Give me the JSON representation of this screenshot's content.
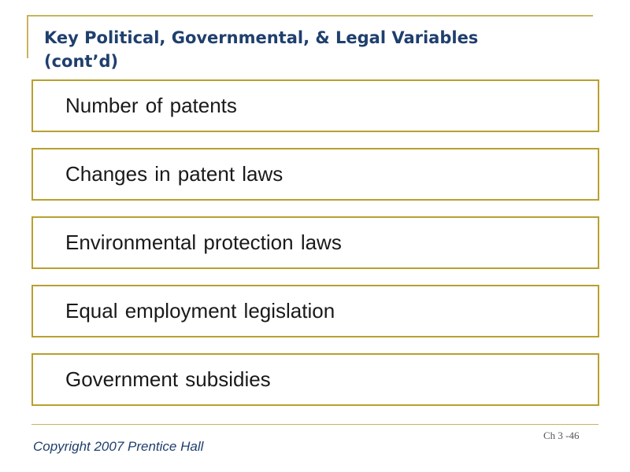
{
  "slide": {
    "title_lines": [
      "Key Political, Governmental, & Legal Variables",
      "(cont’d)"
    ],
    "items": [
      {
        "label": "Number of patents"
      },
      {
        "label": "Changes in patent laws"
      },
      {
        "label": "Environmental protection laws"
      },
      {
        "label": "Equal employment legislation"
      },
      {
        "label": "Government subsidies"
      }
    ]
  },
  "footer": {
    "copyright": "Copyright 2007 Prentice Hall",
    "page": "Ch 3 -46"
  },
  "colors": {
    "accent": "#b8a02e",
    "title": "#1f3f6d"
  }
}
